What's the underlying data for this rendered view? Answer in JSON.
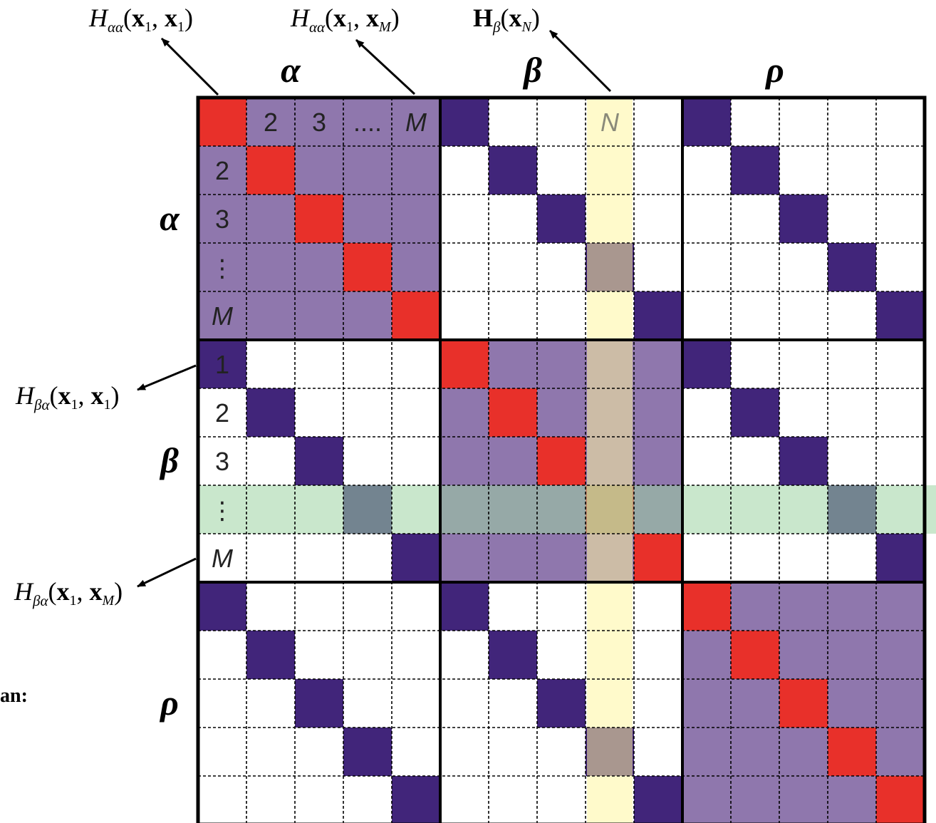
{
  "colors": {
    "diagonal": "#e8302a",
    "same_block": "#8f77ad",
    "cross_block": "#41257a",
    "column_highlight": "#fff5a0",
    "row_highlight": "#9dd4a2",
    "grid": "#000000",
    "background": "#ffffff"
  },
  "blocks": [
    "α",
    "β",
    "ρ"
  ],
  "matrix": {
    "block_size": 5,
    "num_blocks": 3,
    "row_labels": {
      "α": [
        "",
        "2",
        "3",
        "⋮",
        "M"
      ],
      "β": [
        "1",
        "2",
        "3",
        "⋮",
        "M"
      ],
      "ρ": [
        "",
        "",
        "",
        "",
        ""
      ]
    },
    "column_labels": {
      "α": [
        "",
        "2",
        "3",
        "....",
        "M"
      ],
      "β": [
        "",
        "",
        "",
        "N",
        ""
      ],
      "ρ": [
        "",
        "",
        "",
        "",
        ""
      ]
    },
    "highlighted_column": {
      "block": "β",
      "index": 4
    },
    "highlighted_row": {
      "block": "β",
      "index": 4
    }
  },
  "callouts": {
    "h_aa_11": {
      "base": "H",
      "sub": "αα",
      "args": [
        "x",
        "1",
        "x",
        "1"
      ]
    },
    "h_aa_1M": {
      "base": "H",
      "sub": "αα",
      "args": [
        "x",
        "1",
        "x",
        "M"
      ]
    },
    "h_b_N": {
      "base": "H",
      "sub": "β",
      "args": [
        "x",
        "N"
      ]
    },
    "h_ba_11": {
      "base": "H",
      "sub": "βα",
      "args": [
        "x",
        "1",
        "x",
        "1"
      ]
    },
    "h_ba_1M": {
      "base": "H",
      "sub": "βα",
      "args": [
        "x",
        "1",
        "x",
        "M"
      ]
    }
  },
  "edge_text": "an:"
}
